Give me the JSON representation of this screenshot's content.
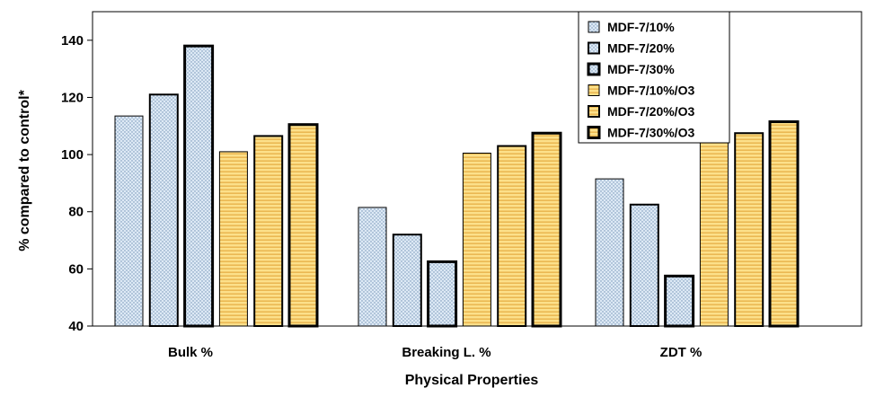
{
  "chart_data": {
    "type": "bar",
    "title": "",
    "xlabel": "Physical Properties",
    "ylabel": "% compared to control*",
    "ylim": [
      40,
      150
    ],
    "yticks": [
      40,
      60,
      80,
      100,
      120,
      140
    ],
    "grid": false,
    "legend_position": "top-right",
    "categories": [
      "Bulk %",
      "Breaking L. %",
      "ZDT %"
    ],
    "series": [
      {
        "name": "MDF-7/10%",
        "values": [
          113.5,
          81.5,
          91.5
        ],
        "fill": "#dde9f5",
        "pattern": "dots",
        "border": "thin"
      },
      {
        "name": "MDF-7/20%",
        "values": [
          121,
          72,
          82.5
        ],
        "fill": "#dde9f5",
        "pattern": "dots",
        "border": "medium"
      },
      {
        "name": "MDF-7/30%",
        "values": [
          138,
          62.5,
          57.5
        ],
        "fill": "#dde9f5",
        "pattern": "dots",
        "border": "thick"
      },
      {
        "name": "MDF-7/10%/O3",
        "values": [
          101,
          100.5,
          105.5
        ],
        "fill": "#fce08a",
        "pattern": "lines",
        "border": "thin"
      },
      {
        "name": "MDF-7/20%/O3",
        "values": [
          106.5,
          103,
          107.5
        ],
        "fill": "#fce08a",
        "pattern": "lines",
        "border": "medium"
      },
      {
        "name": "MDF-7/30%/O3",
        "values": [
          110.5,
          107.5,
          111.5
        ],
        "fill": "#fce08a",
        "pattern": "lines",
        "border": "thick"
      }
    ]
  }
}
